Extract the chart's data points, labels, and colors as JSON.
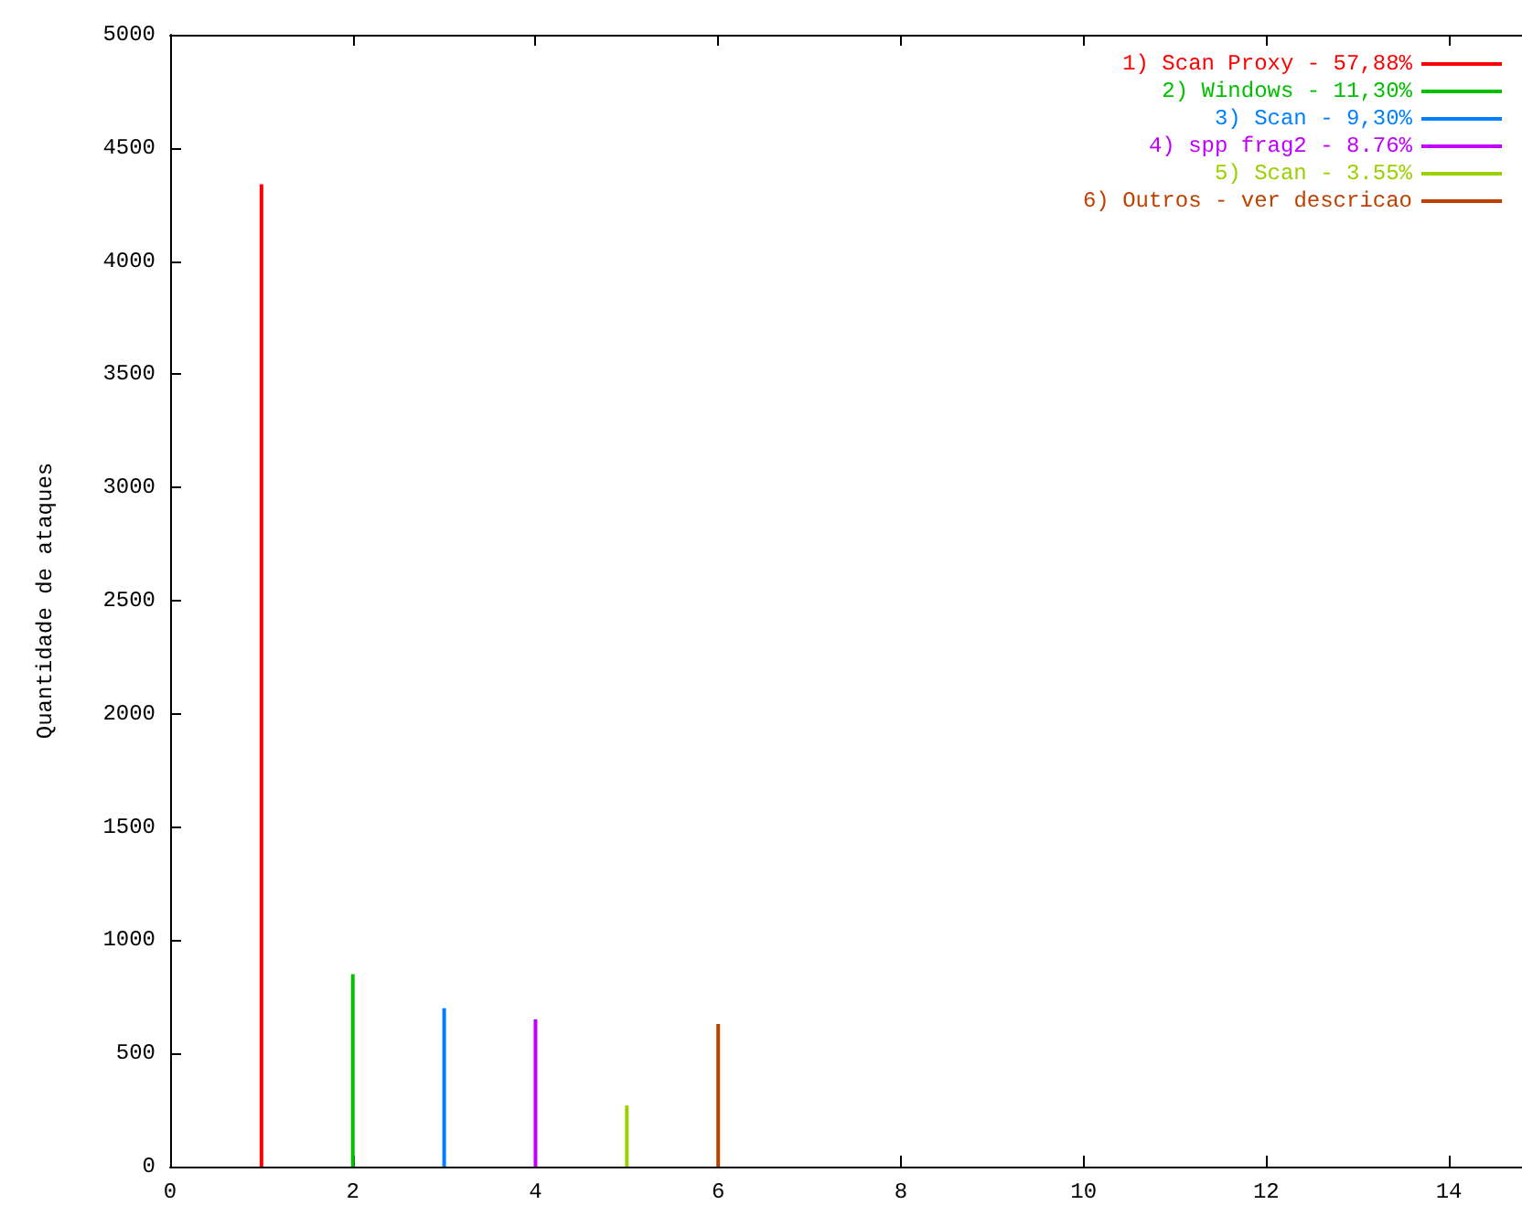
{
  "chart_data": {
    "type": "bar",
    "ylabel": "Quantidade de ataques",
    "series": [
      {
        "name": "1) Scan Proxy - 57,88%",
        "color": "#ff0000",
        "x": [
          1
        ],
        "values": [
          4340
        ]
      },
      {
        "name": "2) Windows - 11,30%",
        "color": "#00c000",
        "x": [
          2
        ],
        "values": [
          850
        ]
      },
      {
        "name": "3) Scan - 9,30%",
        "color": "#0080ff",
        "x": [
          3
        ],
        "values": [
          700
        ]
      },
      {
        "name": "4) spp frag2 - 8.76%",
        "color": "#c000ff",
        "x": [
          4
        ],
        "values": [
          650
        ]
      },
      {
        "name": "5) Scan - 3.55%",
        "color": "#9ad000",
        "x": [
          5
        ],
        "values": [
          270
        ]
      },
      {
        "name": "6) Outros - ver descricao",
        "color": "#c04000",
        "x": [
          6
        ],
        "values": [
          630
        ]
      }
    ],
    "xlim": [
      0,
      14.8
    ],
    "xticks": [
      0,
      2,
      4,
      6,
      8,
      10,
      12,
      14
    ],
    "ylim": [
      0,
      5000
    ],
    "yticks": [
      0,
      500,
      1000,
      1500,
      2000,
      2500,
      3000,
      3500,
      4000,
      4500,
      5000
    ],
    "grid": false,
    "legend": "top right"
  }
}
